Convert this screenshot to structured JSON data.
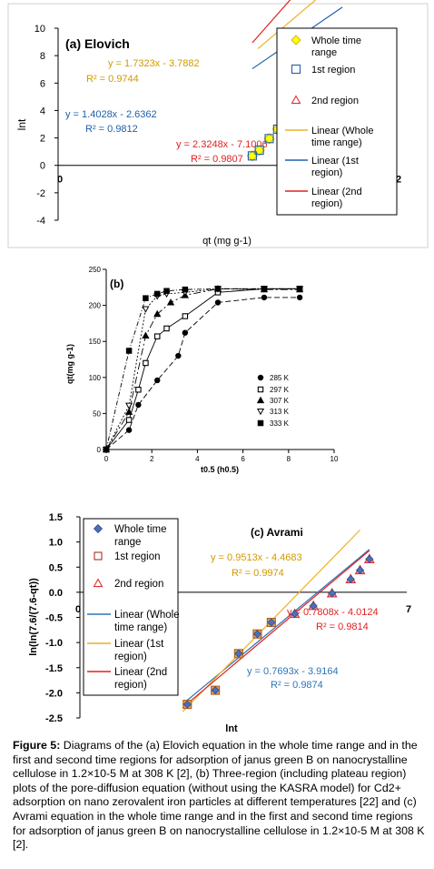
{
  "chart_data": [
    {
      "type": "scatter",
      "title": "(a) Elovich",
      "xlabel": "qt (mg g-1)",
      "ylabel": "lnt",
      "xlim": [
        0,
        12
      ],
      "ylim": [
        -4,
        10
      ],
      "x_ticks": [
        "0",
        "12"
      ],
      "y_ticks": [
        "-4",
        "-2",
        "0",
        "2",
        "4",
        "6",
        "8",
        "10"
      ],
      "legend_position": "right",
      "series": [
        {
          "name": "Whole time range",
          "marker": "diamond",
          "color": "#ffff00",
          "x": [
            6.9,
            7.15,
            7.5,
            7.8,
            8.15,
            8.55,
            8.85,
            9.05,
            9.3,
            9.5,
            9.65,
            9.8
          ],
          "y": [
            0.69,
            1.1,
            1.95,
            2.64,
            3.0,
            3.5,
            4.1,
            4.8,
            5.5,
            6.0,
            6.5,
            7.2
          ]
        },
        {
          "name": "1st region",
          "marker": "square",
          "color": "#1f5fa8",
          "x": [
            6.9,
            7.15,
            7.5,
            7.8,
            8.1
          ],
          "y": [
            0.69,
            1.1,
            1.95,
            2.64,
            3.2
          ]
        },
        {
          "name": "2nd region",
          "marker": "triangle",
          "color": "#e03030",
          "x": [
            8.55,
            8.85,
            9.05,
            9.3,
            9.5,
            9.65,
            9.8,
            9.95
          ],
          "y": [
            3.6,
            4.1,
            4.8,
            5.5,
            6.0,
            6.5,
            7.2,
            7.6
          ]
        }
      ],
      "fits": [
        {
          "name": "Linear (Whole time range)",
          "color": "#f0b020",
          "slope": 1.7323,
          "intercept": -3.7882,
          "x_range": [
            7.1,
            10.0
          ],
          "equation": "y = 1.7323x - 3.7882",
          "r2": "R² = 0.9744"
        },
        {
          "name": "Linear (1st region)",
          "color": "#2060b0",
          "slope": 1.4028,
          "intercept": -2.6362,
          "x_range": [
            6.9,
            10.1
          ],
          "equation": "y = 1.4028x - 2.6362",
          "r2": "R² = 0.9812"
        },
        {
          "name": "Linear (2nd region)",
          "color": "#e02020",
          "slope": 2.3248,
          "intercept": -7.1006,
          "x_range": [
            6.9,
            10.0
          ],
          "equation": "y = 2.3248x - 7.1006",
          "r2": "R² = 0.9807"
        }
      ],
      "legend_entries": [
        {
          "marker": "diamond",
          "label_lines": [
            "Whole time",
            "range"
          ]
        },
        {
          "marker": "square",
          "label_lines": [
            "1st region"
          ]
        },
        {
          "marker": "triangle",
          "label_lines": [
            "2nd region"
          ]
        },
        {
          "marker": "line-yellow",
          "label_lines": [
            "Linear (Whole",
            "time range)"
          ]
        },
        {
          "marker": "line-blue",
          "label_lines": [
            "Linear (1st",
            "region)"
          ]
        },
        {
          "marker": "line-red",
          "label_lines": [
            "Linear (2nd",
            "region)"
          ]
        }
      ]
    },
    {
      "type": "line",
      "title": "(b)",
      "xlabel": "t0.5 (h0.5)",
      "ylabel": "qt(mg g-1)",
      "xlim": [
        0,
        10
      ],
      "ylim": [
        0,
        250
      ],
      "x_ticks": [
        "0",
        "2",
        "4",
        "6",
        "8",
        "10"
      ],
      "y_ticks": [
        "0",
        "50",
        "100",
        "150",
        "200",
        "250"
      ],
      "legend_position": "right",
      "series": [
        {
          "name": "285 K",
          "marker": "circle-filled",
          "x": [
            0,
            1.0,
            1.41,
            2.24,
            3.16,
            3.46,
            4.9,
            6.93,
            8.49
          ],
          "y": [
            0,
            27,
            62,
            96,
            130,
            162,
            204,
            211,
            211
          ]
        },
        {
          "name": "297 K",
          "marker": "square-open",
          "x": [
            0,
            1.0,
            1.41,
            1.73,
            2.24,
            2.65,
            3.46,
            4.9,
            6.93,
            8.49
          ],
          "y": [
            0,
            41,
            83,
            120,
            157,
            168,
            185,
            218,
            223,
            223
          ]
        },
        {
          "name": "307 K",
          "marker": "triangle-filled",
          "x": [
            0,
            1.0,
            1.73,
            2.24,
            2.83,
            3.46,
            4.9,
            6.93,
            8.49
          ],
          "y": [
            0,
            52,
            158,
            188,
            204,
            214,
            223,
            222,
            222
          ]
        },
        {
          "name": "313 K",
          "marker": "triangle-open",
          "x": [
            0,
            1.0,
            1.73,
            2.24,
            2.65,
            3.46,
            4.9,
            6.93,
            8.49
          ],
          "y": [
            0,
            61,
            195,
            213,
            216,
            218,
            223,
            223,
            223
          ]
        },
        {
          "name": "333 K",
          "marker": "square-filled",
          "x": [
            0,
            1.0,
            1.73,
            2.24,
            2.65,
            3.46,
            4.9,
            6.93,
            8.49
          ],
          "y": [
            0,
            137,
            210,
            216,
            220,
            222,
            223,
            223,
            223
          ]
        }
      ]
    },
    {
      "type": "scatter",
      "title": "(c) Avrami",
      "xlabel": "lnt",
      "ylabel": "ln(ln(7.6/(7.6-qt))",
      "xlim": [
        0,
        7
      ],
      "ylim": [
        -2.5,
        1.5
      ],
      "x_ticks": [
        "0",
        "7"
      ],
      "y_ticks": [
        "-2.5",
        "-2.0",
        "-1.5",
        "-1.0",
        "-0.5",
        "0.0",
        "0.5",
        "1.0",
        "1.5"
      ],
      "legend_position": "left",
      "series": [
        {
          "name": "Whole time range",
          "marker": "diamond",
          "color": "#4d6fb6",
          "x": [
            2.3,
            2.9,
            3.4,
            3.8,
            4.1,
            4.6,
            5.0,
            5.4,
            5.8,
            6.0,
            6.2
          ],
          "y": [
            -2.23,
            -1.95,
            -1.22,
            -0.83,
            -0.6,
            -0.43,
            -0.27,
            -0.02,
            0.26,
            0.44,
            0.66
          ]
        },
        {
          "name": "1st region",
          "marker": "square",
          "color": "#b03020",
          "x": [
            2.3,
            2.9,
            3.4,
            3.8,
            4.1
          ],
          "y": [
            -2.23,
            -1.95,
            -1.22,
            -0.83,
            -0.6
          ]
        },
        {
          "name": "2nd region",
          "marker": "triangle",
          "color": "#e03030",
          "x": [
            4.6,
            5.0,
            5.4,
            5.8,
            6.0,
            6.2
          ],
          "y": [
            -0.43,
            -0.27,
            -0.02,
            0.26,
            0.44,
            0.66
          ]
        }
      ],
      "fits": [
        {
          "name": "Linear (Whole time range)",
          "color": "#2e75b6",
          "slope": 0.7693,
          "intercept": -3.9164,
          "x_range": [
            2.2,
            6.2
          ],
          "equation": "y = 0.7693x - 3.9164",
          "r2": "R² = 0.9874"
        },
        {
          "name": "Linear (1st region)",
          "color": "#f0b020",
          "slope": 0.9513,
          "intercept": -4.4683,
          "x_range": [
            2.2,
            6.0
          ],
          "equation": "y = 0.9513x - 4.4683",
          "r2": "R² = 0.9974"
        },
        {
          "name": "Linear (2nd region)",
          "color": "#e02020",
          "slope": 0.7808,
          "intercept": -4.0124,
          "x_range": [
            2.2,
            6.2
          ],
          "equation": "y = 0.7808x - 4.0124",
          "r2": "R² = 0.9814"
        }
      ],
      "legend_entries": [
        {
          "marker": "diamond",
          "label_lines": [
            "Whole time",
            "range"
          ]
        },
        {
          "marker": "square",
          "label_lines": [
            "1st region"
          ]
        },
        {
          "marker": "triangle",
          "label_lines": [
            "2nd region"
          ]
        },
        {
          "marker": "line-blue",
          "label_lines": [
            "Linear (Whole",
            "time range)"
          ]
        },
        {
          "marker": "line-yellow",
          "label_lines": [
            "Linear (1st",
            "region)"
          ]
        },
        {
          "marker": "line-red",
          "label_lines": [
            "Linear (2nd",
            "region)"
          ]
        }
      ]
    }
  ],
  "caption": {
    "label": "Figure 5:",
    "text": "Diagrams of the (a) Elovich equation in the whole time range and in the first and second time regions for adsorption of janus green B on nanocrystalline cellulose in 1.2×10-5 M at 308 K [2], (b) Three-region (including plateau region) plots of the pore-diffusion equation (without using the KASRA model) for Cd2+ adsorption on nano zerovalent iron particles at different temperatures [22] and (c) Avrami equation in the whole time range and in the first and second time regions for adsorption of janus green B on nanocrystalline cellulose in 1.2×10-5 M at 308 K [2]."
  }
}
